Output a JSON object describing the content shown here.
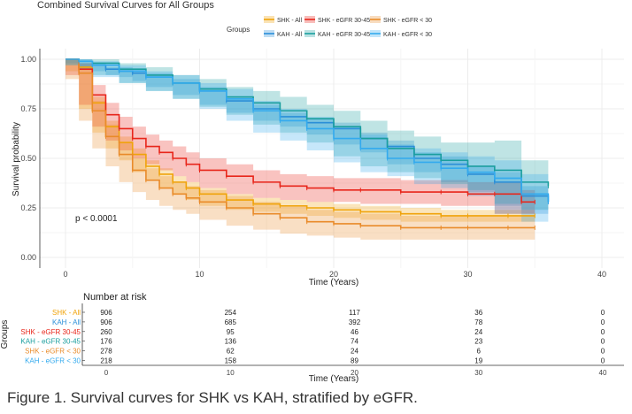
{
  "caption": "Figure 1. Survival curves for SHK vs KAH, stratified by eGFR.",
  "chart_data": {
    "type": "line",
    "title": "Combined Survival Curves for All Groups",
    "xlabel": "Time (Years)",
    "ylabel": "Survival probability",
    "xlim": [
      0,
      40
    ],
    "ylim": [
      0,
      1
    ],
    "x_ticks": [
      "0",
      "10",
      "20",
      "30",
      "40"
    ],
    "y_ticks": [
      "0.00",
      "0.25",
      "0.50",
      "0.75",
      "1.00"
    ],
    "annotation": "p < 0.0001",
    "legend_title": "Groups",
    "legend_position": "top",
    "grid": true,
    "series": [
      {
        "name": "SHK - All",
        "color": "#f0a30a",
        "x": [
          0,
          1,
          2,
          3,
          4,
          5,
          6,
          7,
          8,
          9,
          10,
          12,
          14,
          16,
          18,
          20,
          22,
          25,
          28,
          30,
          33,
          35
        ],
        "y": [
          1.0,
          0.96,
          0.78,
          0.66,
          0.58,
          0.52,
          0.46,
          0.42,
          0.38,
          0.35,
          0.32,
          0.29,
          0.27,
          0.26,
          0.25,
          0.24,
          0.23,
          0.22,
          0.21,
          0.21,
          0.21,
          0.21
        ],
        "lower": [
          1.0,
          0.94,
          0.75,
          0.63,
          0.55,
          0.49,
          0.43,
          0.39,
          0.35,
          0.32,
          0.29,
          0.26,
          0.24,
          0.23,
          0.22,
          0.21,
          0.2,
          0.19,
          0.18,
          0.18,
          0.18,
          0.18
        ],
        "upper": [
          1.0,
          0.98,
          0.81,
          0.69,
          0.61,
          0.55,
          0.49,
          0.45,
          0.41,
          0.38,
          0.35,
          0.32,
          0.3,
          0.29,
          0.28,
          0.27,
          0.26,
          0.25,
          0.24,
          0.24,
          0.24,
          0.24
        ]
      },
      {
        "name": "KAH - All",
        "color": "#2b8fd8",
        "x": [
          0,
          1,
          2,
          3,
          4,
          5,
          6,
          8,
          10,
          12,
          14,
          16,
          18,
          20,
          22,
          24,
          26,
          28,
          30,
          32,
          34,
          36
        ],
        "y": [
          1.0,
          0.99,
          0.97,
          0.95,
          0.94,
          0.93,
          0.91,
          0.88,
          0.84,
          0.79,
          0.75,
          0.71,
          0.68,
          0.65,
          0.6,
          0.56,
          0.5,
          0.47,
          0.42,
          0.38,
          0.31,
          0.28
        ],
        "lower": [
          1.0,
          0.98,
          0.96,
          0.94,
          0.92,
          0.91,
          0.89,
          0.86,
          0.82,
          0.77,
          0.73,
          0.69,
          0.66,
          0.62,
          0.57,
          0.53,
          0.47,
          0.43,
          0.38,
          0.33,
          0.26,
          0.22
        ],
        "upper": [
          1.0,
          1.0,
          0.98,
          0.96,
          0.96,
          0.95,
          0.93,
          0.9,
          0.86,
          0.81,
          0.77,
          0.73,
          0.7,
          0.68,
          0.63,
          0.59,
          0.53,
          0.51,
          0.46,
          0.43,
          0.36,
          0.34
        ]
      },
      {
        "name": "SHK - eGFR 30-45",
        "color": "#e8261b",
        "x": [
          0,
          1,
          2,
          3,
          4,
          5,
          6,
          7,
          8,
          9,
          10,
          12,
          14,
          16,
          18,
          20,
          22,
          25,
          28,
          30,
          32,
          34,
          35
        ],
        "y": [
          1.0,
          0.95,
          0.82,
          0.72,
          0.65,
          0.6,
          0.56,
          0.53,
          0.5,
          0.47,
          0.44,
          0.41,
          0.38,
          0.36,
          0.35,
          0.34,
          0.34,
          0.33,
          0.33,
          0.32,
          0.32,
          0.28,
          0.28
        ],
        "lower": [
          1.0,
          0.92,
          0.77,
          0.66,
          0.59,
          0.54,
          0.5,
          0.47,
          0.44,
          0.41,
          0.38,
          0.35,
          0.32,
          0.3,
          0.29,
          0.28,
          0.28,
          0.27,
          0.27,
          0.26,
          0.26,
          0.22,
          0.22
        ],
        "upper": [
          1.0,
          0.98,
          0.87,
          0.78,
          0.71,
          0.66,
          0.62,
          0.59,
          0.56,
          0.53,
          0.5,
          0.47,
          0.44,
          0.42,
          0.41,
          0.4,
          0.4,
          0.39,
          0.39,
          0.38,
          0.38,
          0.34,
          0.34
        ]
      },
      {
        "name": "KAH - eGFR 30-45",
        "color": "#1a9e9e",
        "x": [
          0,
          1,
          2,
          4,
          6,
          8,
          10,
          12,
          14,
          16,
          18,
          20,
          22,
          24,
          26,
          28,
          30,
          32,
          34,
          36
        ],
        "y": [
          1.0,
          0.99,
          0.98,
          0.95,
          0.92,
          0.88,
          0.85,
          0.81,
          0.78,
          0.74,
          0.7,
          0.66,
          0.6,
          0.55,
          0.52,
          0.49,
          0.46,
          0.44,
          0.38,
          0.36
        ],
        "lower": [
          1.0,
          0.97,
          0.95,
          0.92,
          0.88,
          0.84,
          0.8,
          0.76,
          0.72,
          0.67,
          0.63,
          0.58,
          0.51,
          0.46,
          0.43,
          0.4,
          0.37,
          0.34,
          0.27,
          0.24
        ],
        "upper": [
          1.0,
          1.0,
          1.0,
          0.98,
          0.96,
          0.92,
          0.9,
          0.86,
          0.84,
          0.81,
          0.77,
          0.74,
          0.69,
          0.64,
          0.61,
          0.58,
          0.58,
          0.59,
          0.49,
          0.48
        ]
      },
      {
        "name": "SHK - eGFR < 30",
        "color": "#e98b2a",
        "x": [
          0,
          1,
          2,
          3,
          4,
          5,
          6,
          7,
          8,
          9,
          10,
          12,
          14,
          16,
          18,
          20,
          22,
          25,
          28,
          30,
          33,
          35
        ],
        "y": [
          1.0,
          0.93,
          0.74,
          0.61,
          0.52,
          0.44,
          0.39,
          0.35,
          0.32,
          0.3,
          0.28,
          0.25,
          0.22,
          0.2,
          0.18,
          0.17,
          0.16,
          0.15,
          0.15,
          0.15,
          0.15,
          0.15
        ],
        "lower": [
          1.0,
          0.9,
          0.69,
          0.55,
          0.46,
          0.38,
          0.33,
          0.29,
          0.26,
          0.24,
          0.22,
          0.19,
          0.16,
          0.14,
          0.12,
          0.11,
          0.1,
          0.09,
          0.09,
          0.09,
          0.09,
          0.09
        ],
        "upper": [
          1.0,
          0.96,
          0.79,
          0.67,
          0.58,
          0.5,
          0.45,
          0.41,
          0.38,
          0.36,
          0.34,
          0.31,
          0.28,
          0.26,
          0.24,
          0.23,
          0.22,
          0.21,
          0.21,
          0.21,
          0.21,
          0.21
        ]
      },
      {
        "name": "KAH - eGFR < 30",
        "color": "#33aaee",
        "x": [
          0,
          1,
          2,
          4,
          6,
          8,
          10,
          12,
          14,
          16,
          18,
          20,
          22,
          24,
          26,
          28,
          30,
          32,
          34,
          36
        ],
        "y": [
          1.0,
          0.99,
          0.97,
          0.94,
          0.91,
          0.88,
          0.84,
          0.8,
          0.74,
          0.69,
          0.65,
          0.6,
          0.55,
          0.5,
          0.48,
          0.45,
          0.43,
          0.4,
          0.32,
          0.28
        ],
        "lower": [
          1.0,
          0.97,
          0.95,
          0.91,
          0.88,
          0.84,
          0.8,
          0.75,
          0.69,
          0.63,
          0.59,
          0.54,
          0.48,
          0.43,
          0.41,
          0.37,
          0.35,
          0.31,
          0.22,
          0.18
        ],
        "upper": [
          1.0,
          1.0,
          0.99,
          0.97,
          0.94,
          0.92,
          0.88,
          0.85,
          0.79,
          0.75,
          0.71,
          0.66,
          0.62,
          0.57,
          0.55,
          0.53,
          0.51,
          0.49,
          0.42,
          0.38
        ]
      }
    ],
    "risk_table": {
      "title": "Number at risk",
      "ylabel": "Groups",
      "xlabel": "Time (Years)",
      "times": [
        "0",
        "10",
        "20",
        "30",
        "40"
      ],
      "rows": [
        {
          "label": "SHK - All",
          "color": "#f0a30a",
          "values": [
            "906",
            "254",
            "117",
            "36",
            "0"
          ]
        },
        {
          "label": "KAH - All",
          "color": "#2b8fd8",
          "values": [
            "906",
            "685",
            "392",
            "78",
            "0"
          ]
        },
        {
          "label": "SHK - eGFR 30-45",
          "color": "#e8261b",
          "values": [
            "260",
            "95",
            "46",
            "24",
            "0"
          ]
        },
        {
          "label": "KAH - eGFR 30-45",
          "color": "#1a9e9e",
          "values": [
            "176",
            "136",
            "74",
            "23",
            "0"
          ]
        },
        {
          "label": "SHK - eGFR < 30",
          "color": "#e98b2a",
          "values": [
            "278",
            "62",
            "24",
            "6",
            "0"
          ]
        },
        {
          "label": "KAH - eGFR < 30",
          "color": "#33aaee",
          "values": [
            "218",
            "158",
            "89",
            "19",
            "0"
          ]
        }
      ]
    }
  }
}
